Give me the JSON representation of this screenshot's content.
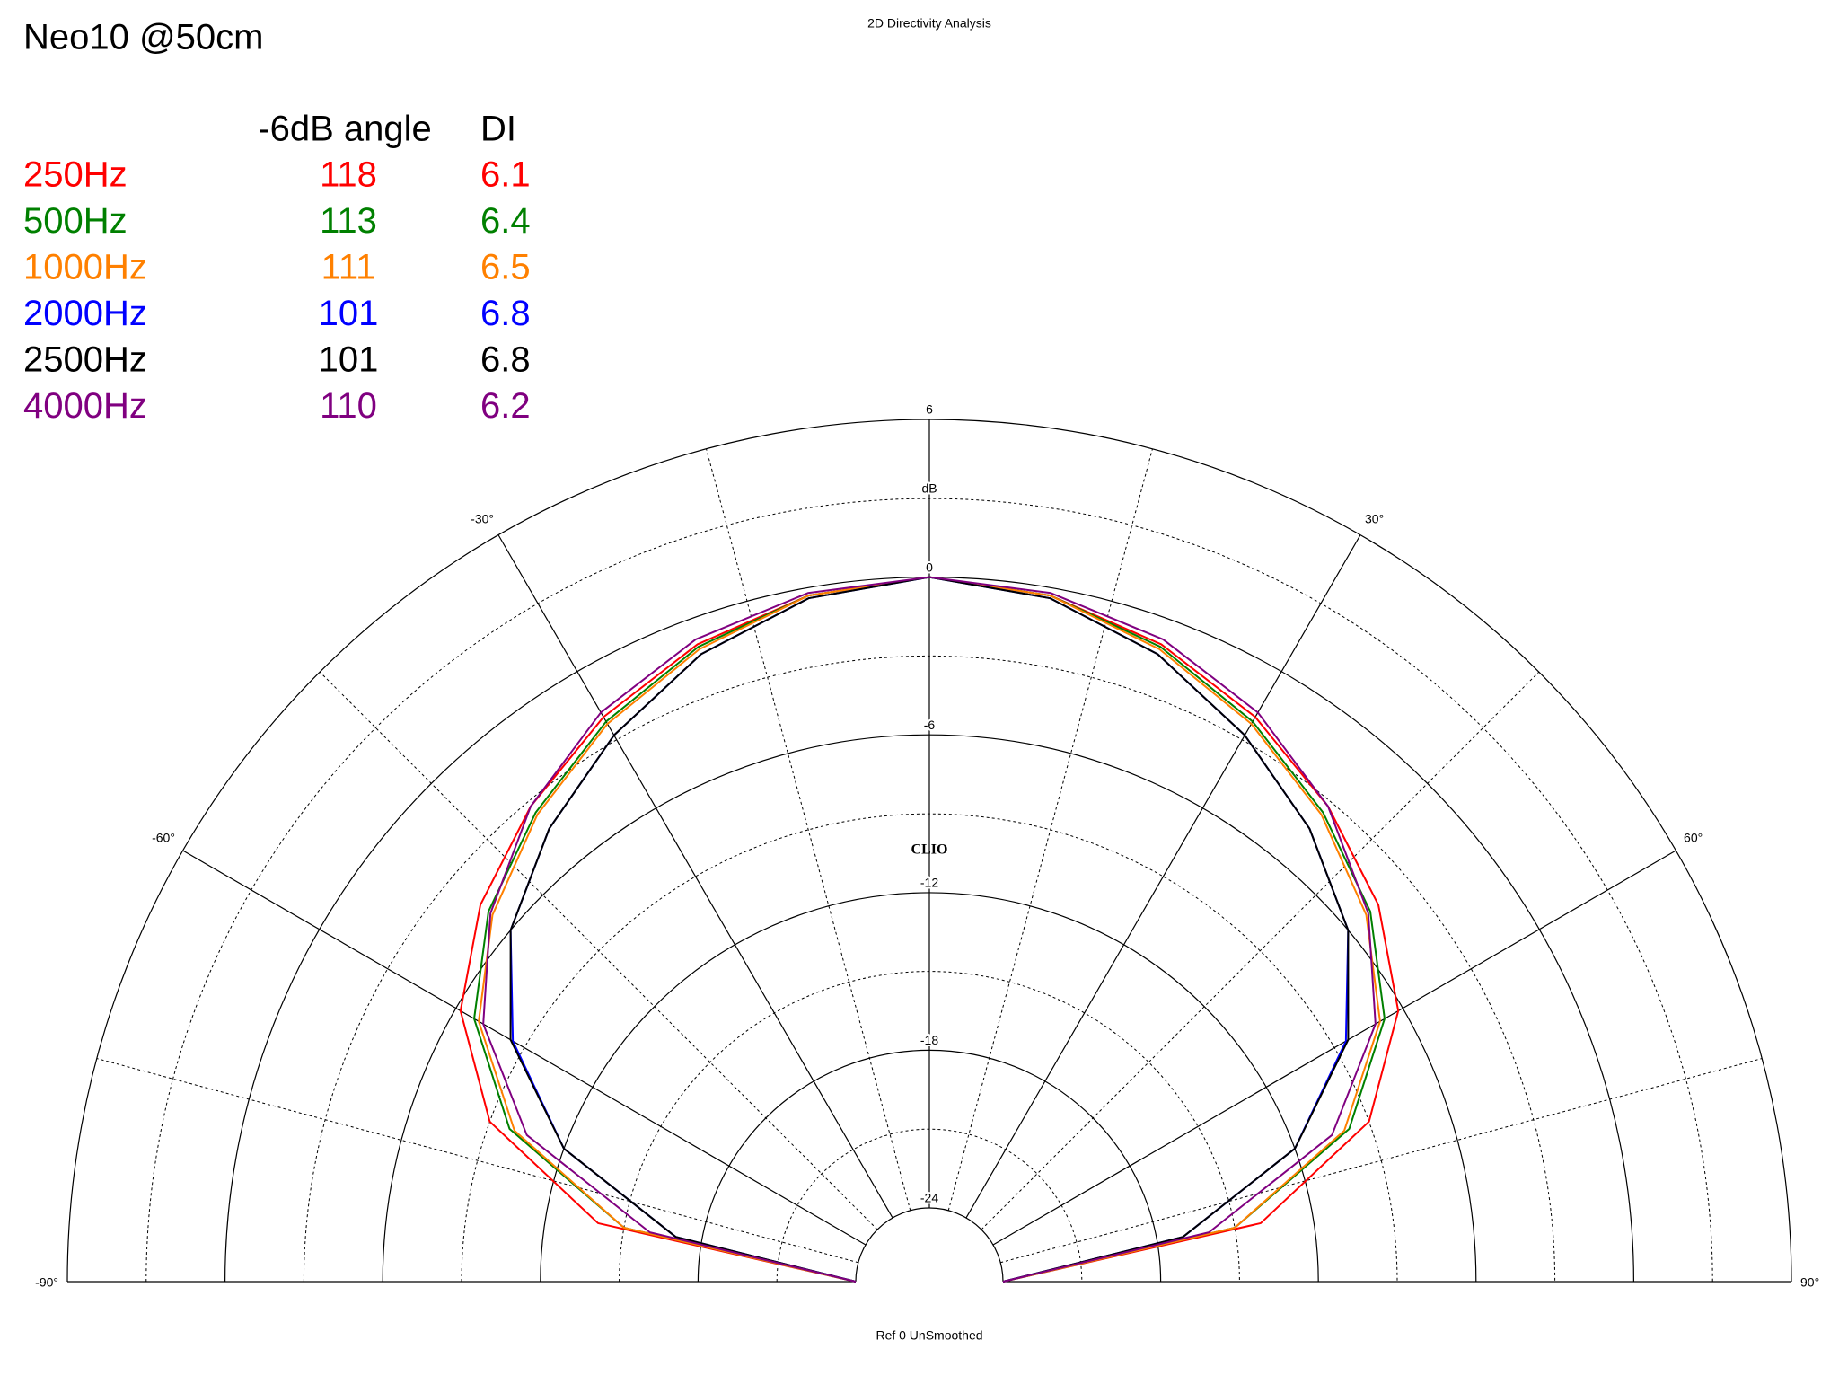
{
  "chart_data": {
    "type": "polar",
    "title": "2D Directivity Analysis",
    "label": "Neo10 @50cm",
    "footer": "Ref 0  UnSmoothed",
    "watermark": "CLIO",
    "r_unit": "dB",
    "table_headers": [
      "-6dB angle",
      "DI"
    ],
    "x": [
      -90,
      -80,
      -70,
      -60,
      -50,
      -40,
      -30,
      -20,
      -10,
      0,
      10,
      20,
      30,
      40,
      50,
      60,
      70,
      80,
      90
    ],
    "xlim": [
      -90,
      90
    ],
    "xticks": [
      {
        "value": -90,
        "label": "-90°"
      },
      {
        "value": -60,
        "label": "-60°"
      },
      {
        "value": -30,
        "label": "-30°"
      },
      {
        "value": 30,
        "label": "30°"
      },
      {
        "value": 60,
        "label": "60°"
      },
      {
        "value": 90,
        "label": "90°"
      }
    ],
    "rlim": [
      -24,
      6
    ],
    "rticks": [
      -24,
      -18,
      -12,
      -6,
      0,
      6
    ],
    "series": [
      {
        "name": "250Hz",
        "color": "#ff0000",
        "beamwidth": 118,
        "di": 6.1,
        "values": [
          -24,
          -14,
          -9,
          -6.2,
          -4.5,
          -3.2,
          -2,
          -1,
          -0.3,
          0,
          -0.3,
          -1,
          -2,
          -3.2,
          -4.5,
          -6.2,
          -9,
          -14,
          -24
        ]
      },
      {
        "name": "500Hz",
        "color": "#008000",
        "beamwidth": 113,
        "di": 6.4,
        "values": [
          -24,
          -15,
          -9.8,
          -6.8,
          -4.9,
          -3.5,
          -2.2,
          -1.1,
          -0.3,
          0,
          -0.3,
          -1.1,
          -2.2,
          -3.5,
          -4.9,
          -6.8,
          -9.8,
          -15,
          -24
        ]
      },
      {
        "name": "1000Hz",
        "color": "#ff8000",
        "beamwidth": 111,
        "di": 6.5,
        "values": [
          -24,
          -15,
          -10,
          -7,
          -5.1,
          -3.6,
          -2.3,
          -1.2,
          -0.3,
          0,
          -0.3,
          -1.2,
          -2.3,
          -3.6,
          -5.1,
          -7,
          -10,
          -15,
          -24
        ]
      },
      {
        "name": "2000Hz",
        "color": "#0000ff",
        "beamwidth": 101,
        "di": 6.8,
        "values": [
          -24,
          -17,
          -12,
          -8.5,
          -6,
          -4.3,
          -2.8,
          -1.4,
          -0.4,
          0,
          -0.4,
          -1.4,
          -2.8,
          -4.3,
          -6,
          -8.5,
          -12,
          -17,
          -24
        ]
      },
      {
        "name": "2500Hz",
        "color": "#000000",
        "beamwidth": 101,
        "di": 6.8,
        "values": [
          -24,
          -17,
          -12,
          -8.4,
          -6,
          -4.3,
          -2.8,
          -1.4,
          -0.4,
          0,
          -0.4,
          -1.4,
          -2.8,
          -4.3,
          -6,
          -8.4,
          -12,
          -17,
          -24
        ]
      },
      {
        "name": "4000Hz",
        "color": "#800080",
        "beamwidth": 110,
        "di": 6.2,
        "values": [
          -24,
          -16,
          -10.5,
          -7.2,
          -5,
          -3.2,
          -1.8,
          -0.8,
          -0.2,
          0,
          -0.2,
          -0.8,
          -1.8,
          -3.2,
          -5,
          -7.2,
          -10.5,
          -16,
          -24
        ]
      }
    ]
  }
}
